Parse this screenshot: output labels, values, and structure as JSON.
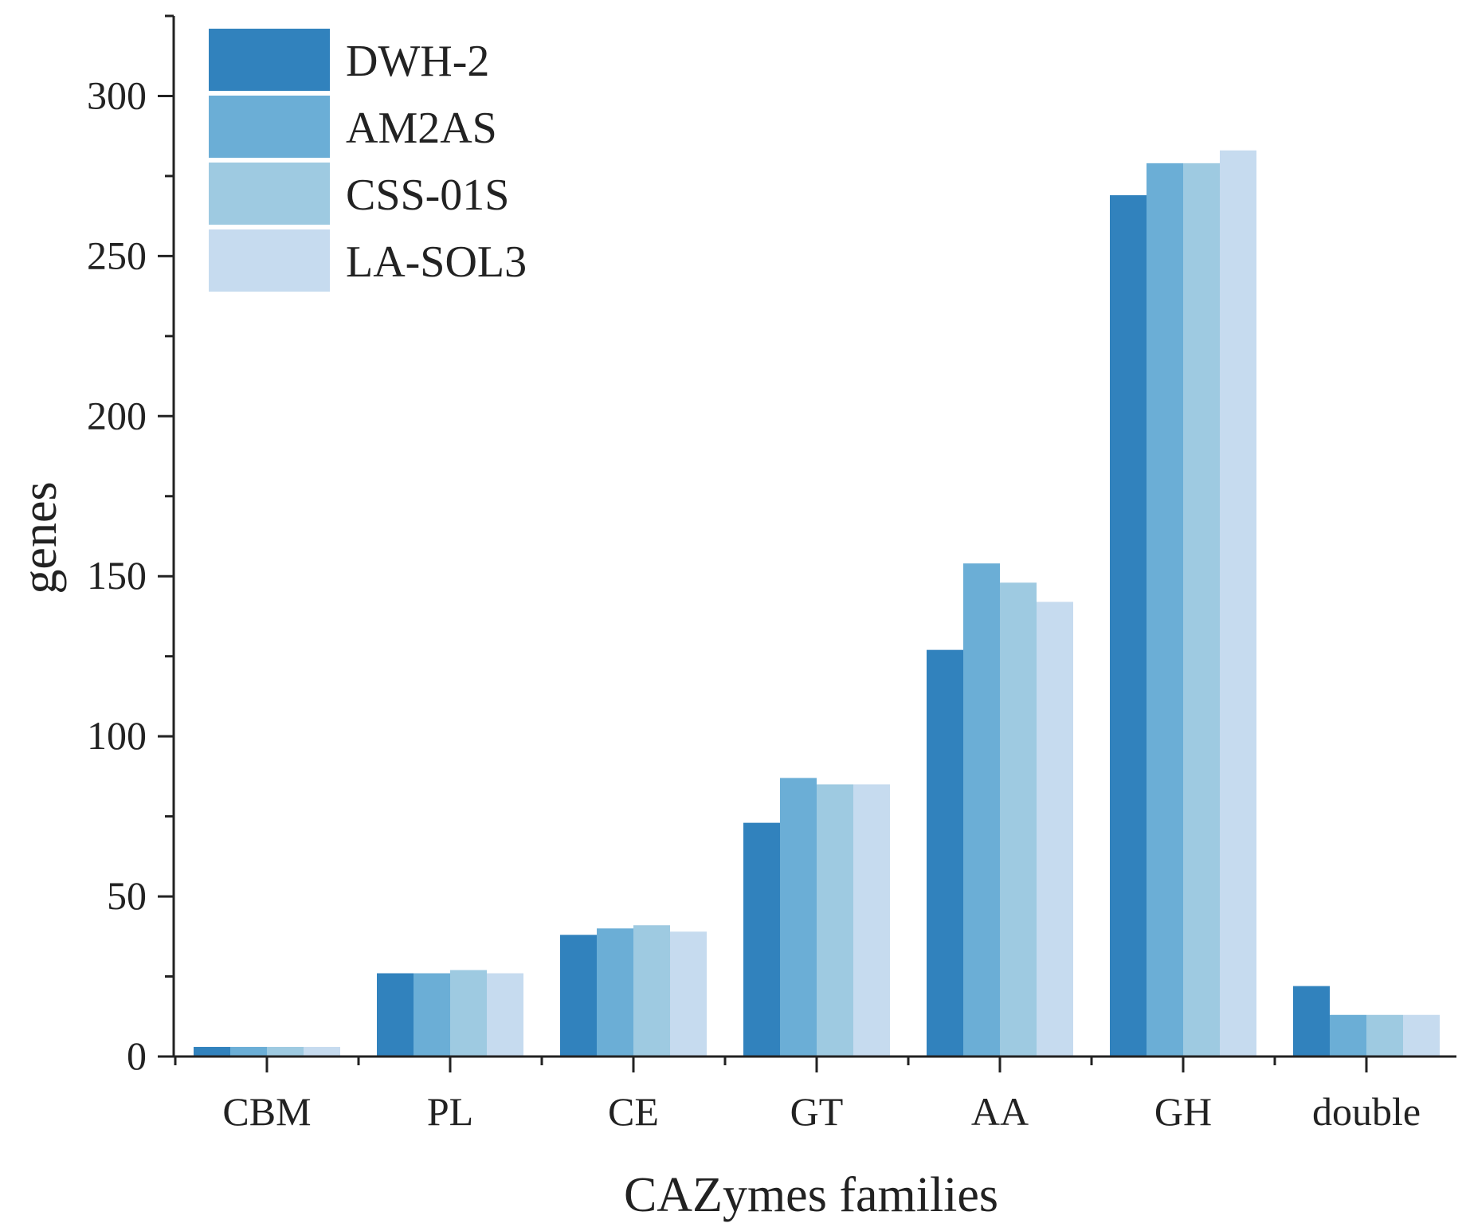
{
  "chart_data": {
    "type": "bar",
    "title": "",
    "xlabel": "CAZymes families",
    "ylabel": "genes",
    "categories": [
      "CBM",
      "PL",
      "CE",
      "GT",
      "AA",
      "GH",
      "double"
    ],
    "series": [
      {
        "name": "DWH-2",
        "color": "#3182bd",
        "values": [
          3,
          26,
          38,
          73,
          127,
          269,
          22
        ]
      },
      {
        "name": "AM2AS",
        "color": "#6baed6",
        "values": [
          3,
          26,
          40,
          87,
          154,
          279,
          13
        ]
      },
      {
        "name": "CSS-01S",
        "color": "#9ecae1",
        "values": [
          3,
          27,
          41,
          85,
          148,
          279,
          13
        ]
      },
      {
        "name": "LA-SOL3",
        "color": "#c6dbef",
        "values": [
          3,
          26,
          39,
          85,
          142,
          283,
          13
        ]
      }
    ],
    "ylim": [
      0,
      325
    ],
    "yticks": [
      0,
      50,
      100,
      150,
      200,
      250,
      300
    ],
    "grid": false,
    "legend_position": "top-left"
  }
}
